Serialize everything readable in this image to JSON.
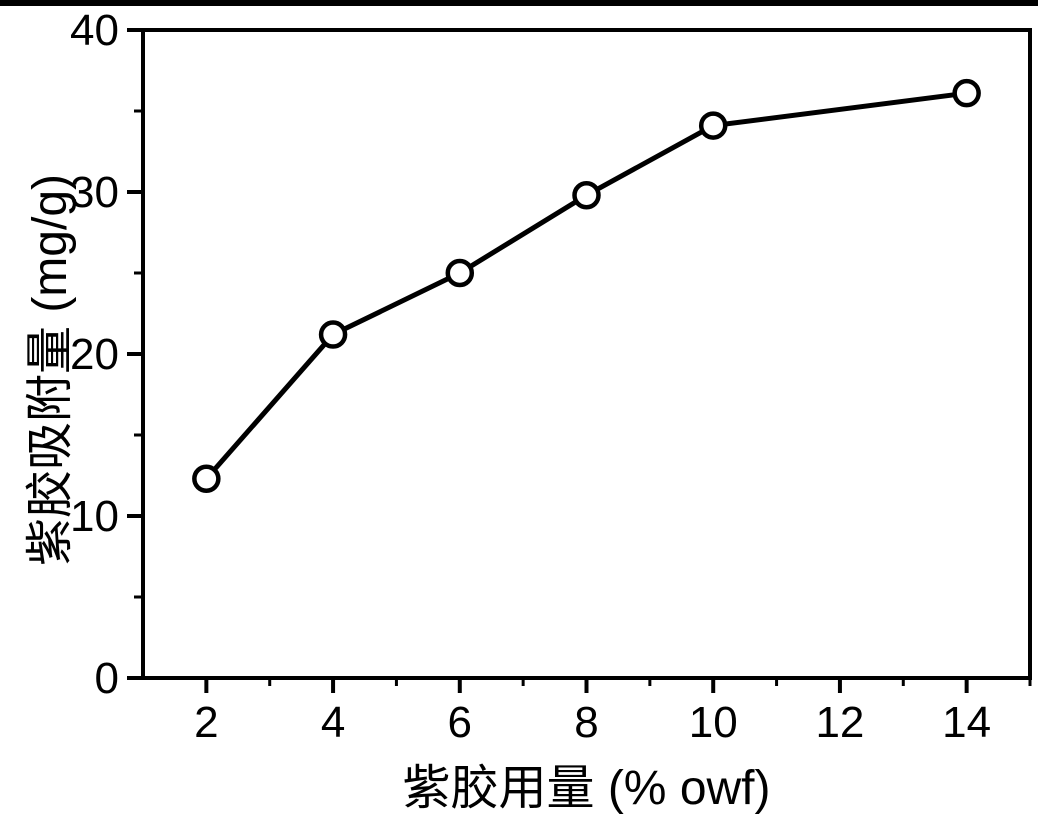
{
  "figure": {
    "background_color": "#ffffff",
    "ink_color": "#000000",
    "top_bar_color": "#000000"
  },
  "chart_data": {
    "type": "line",
    "title": "",
    "xlabel": "紫胶用量 (% owf)",
    "ylabel": "紫胶吸附量 (mg/g)",
    "series": [
      {
        "name": "紫胶吸附量",
        "x": [
          2,
          4,
          6,
          8,
          10,
          14
        ],
        "y": [
          12.3,
          21.2,
          25.0,
          29.8,
          34.1,
          36.1
        ],
        "marker": "open-circle",
        "color": "#000000"
      }
    ],
    "xlim": [
      1,
      15
    ],
    "ylim": [
      0,
      40
    ],
    "x_major_ticks": [
      2,
      4,
      6,
      8,
      10,
      12,
      14
    ],
    "x_minor_ticks": [
      3,
      5,
      7,
      9,
      11,
      13,
      15
    ],
    "y_major_ticks": [
      0,
      10,
      20,
      30,
      40
    ],
    "y_minor_ticks": [
      5,
      15,
      25,
      35
    ],
    "grid": false,
    "legend": "none",
    "frame": "box",
    "tick_direction": "out"
  }
}
